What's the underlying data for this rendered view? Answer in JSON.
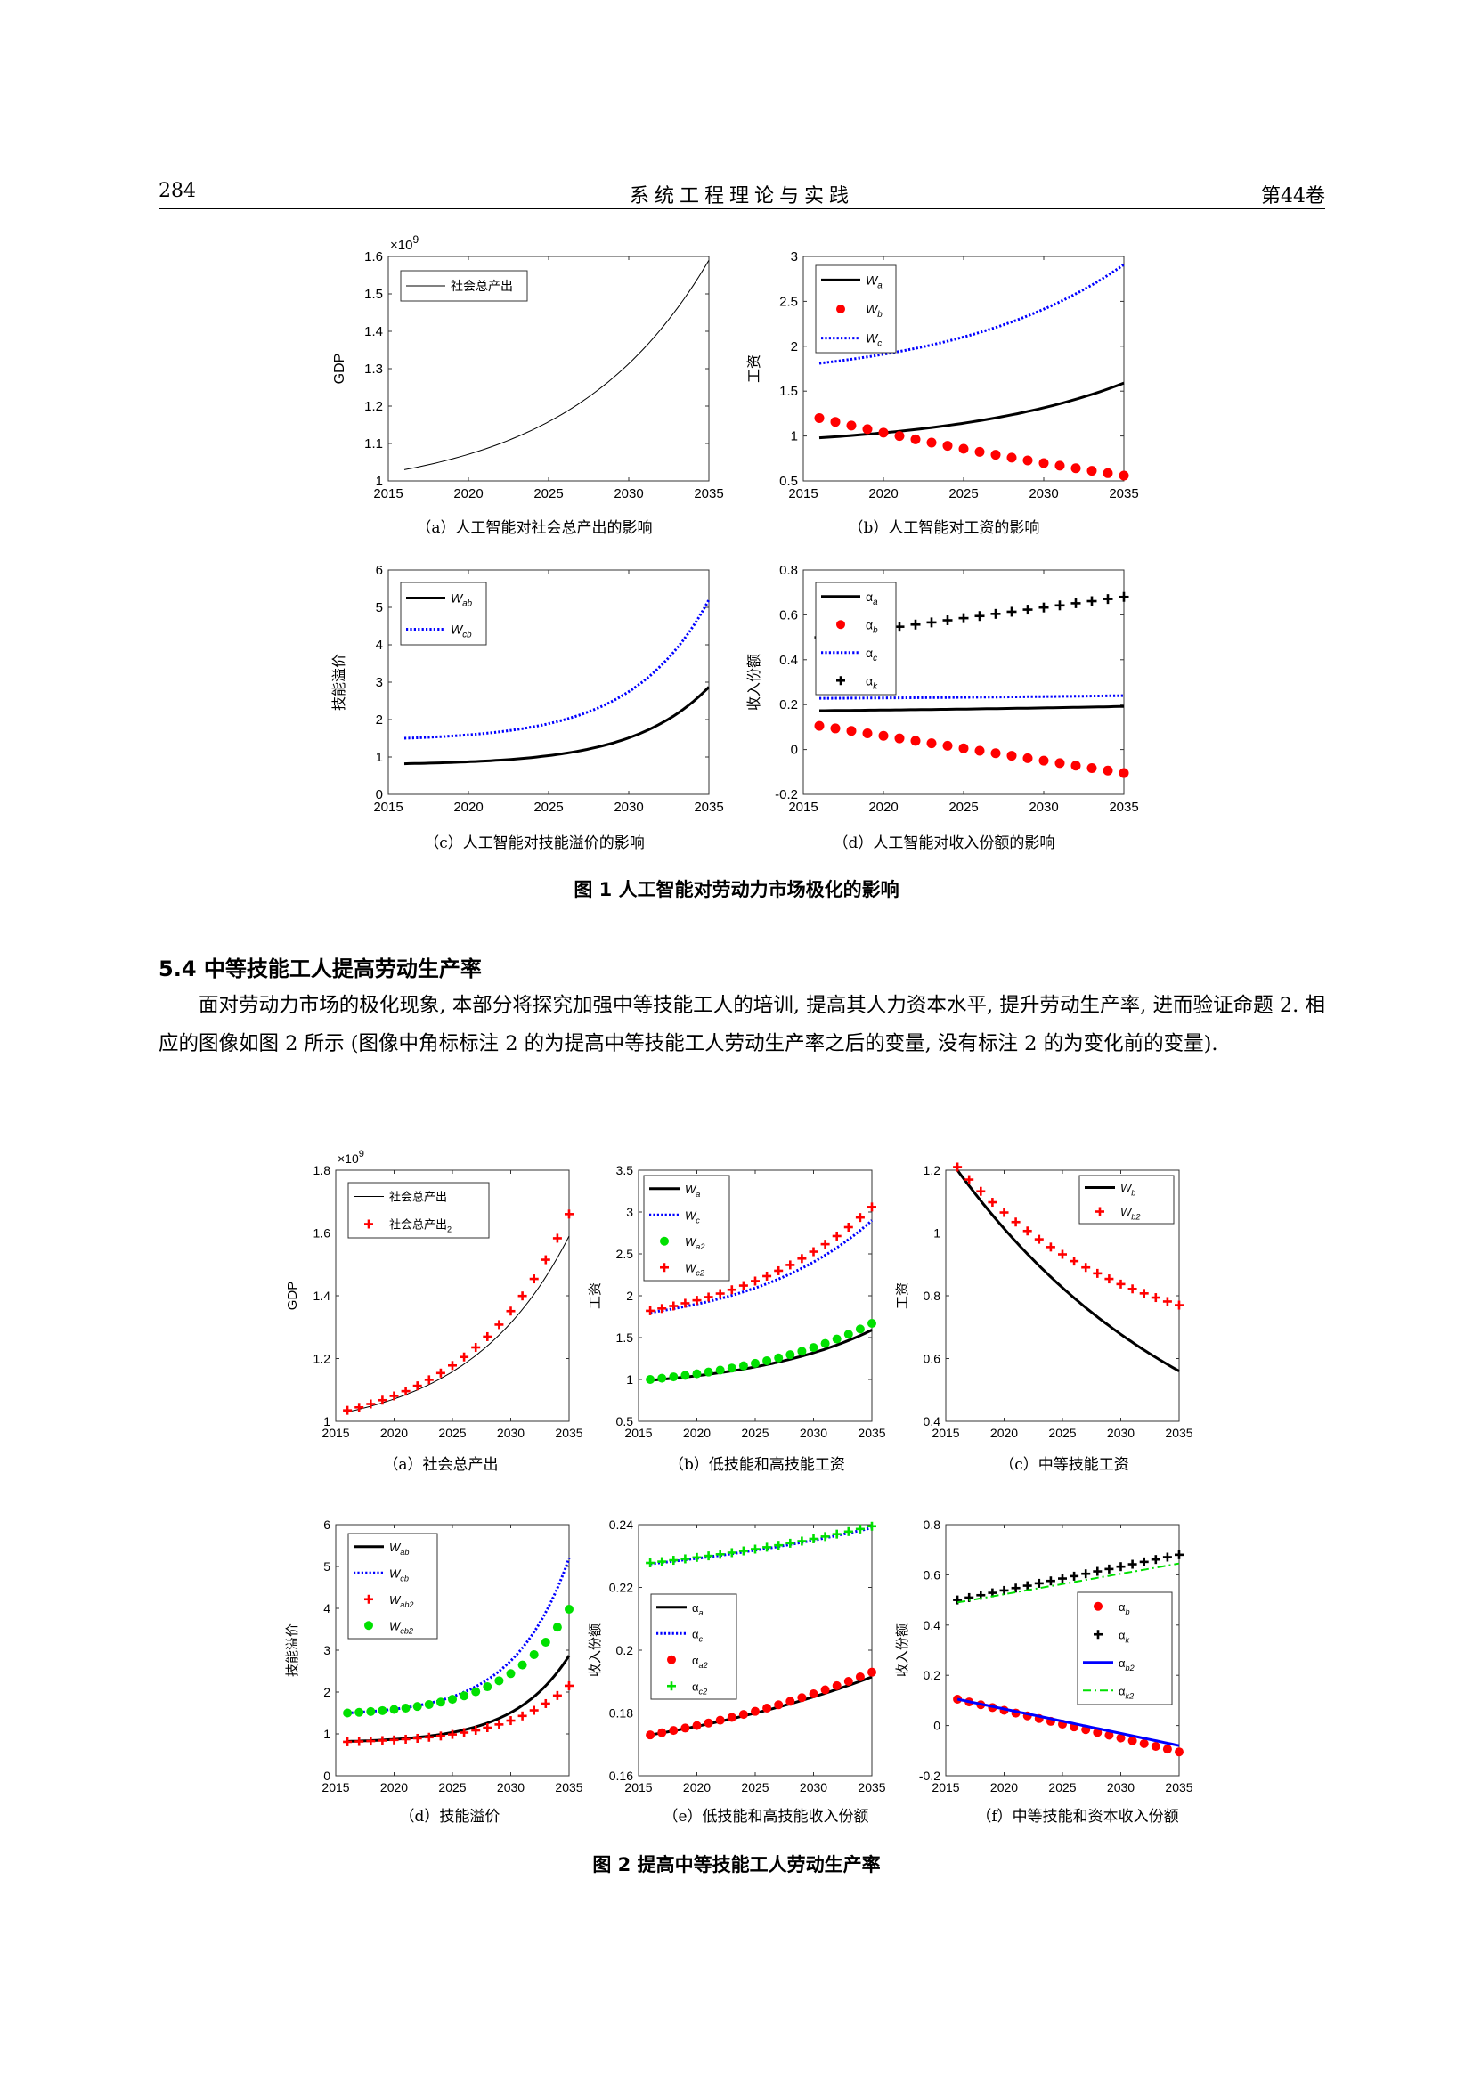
{
  "header": {
    "page_number": "284",
    "journal": "系统工程理论与实践",
    "volume": "第44卷"
  },
  "figure1": {
    "caption": "图 1   人工智能对劳动力市场极化的影响",
    "subcaptions": {
      "a": "（a）人工智能对社会总产出的影响",
      "b": "（b）人工智能对工资的影响",
      "c": "（c）人工智能对技能溢价的影响",
      "d": "（d）人工智能对收入份额的影响"
    }
  },
  "section": {
    "title": "5.4  中等技能工人提高劳动生产率"
  },
  "paragraph": {
    "text": "面对劳动力市场的极化现象, 本部分将探究加强中等技能工人的培训, 提高其人力资本水平, 提升劳动生产率, 进而验证命题 2. 相应的图像如图 2 所示 (图像中角标标注 2 的为提高中等技能工人劳动生产率之后的变量, 没有标注 2 的为变化前的变量)."
  },
  "figure2": {
    "caption": "图 2   提高中等技能工人劳动生产率",
    "subcaptions": {
      "a": "（a）社会总产出",
      "b": "（b）低技能和高技能工资",
      "c": "（c）中等技能工资",
      "d": "（d）技能溢价",
      "e": "（e）低技能和高技能收入份额",
      "f": "（f）中等技能和资本收入份额"
    }
  },
  "chart_data": [
    {
      "id": "1a",
      "type": "line",
      "xlim": [
        2015,
        2035
      ],
      "ylim": [
        1.0,
        1.6
      ],
      "yticks": [
        1,
        1.1,
        1.2,
        1.3,
        1.4,
        1.5,
        1.6
      ],
      "ylabel": "GDP",
      "exponent": "×10^9",
      "legend_position": "top-left",
      "series": [
        {
          "name": "社会总产出",
          "style": "line",
          "color": "#000000",
          "width": 1,
          "x0": 2016,
          "x1": 2035,
          "v0": 1.03,
          "v1": 1.59,
          "growth": 2.2
        }
      ]
    },
    {
      "id": "1b",
      "type": "line",
      "xlim": [
        2015,
        2035
      ],
      "ylim": [
        0.5,
        3
      ],
      "yticks": [
        0.5,
        1,
        1.5,
        2,
        2.5,
        3
      ],
      "ylabel": "工资",
      "legend_position": "top-left",
      "series": [
        {
          "name": "W_a",
          "label": "W",
          "sub": "a",
          "style": "line",
          "color": "#000000",
          "width": 3,
          "x0": 2016,
          "x1": 2035,
          "v0": 0.98,
          "v1": 1.59,
          "growth": 1.8
        },
        {
          "name": "W_b",
          "label": "W",
          "sub": "b",
          "style": "dots",
          "color": "#ff0000",
          "x0": 2016,
          "x1": 2035,
          "v0": 1.2,
          "v1": 0.56,
          "growth": -0.5
        },
        {
          "name": "W_c",
          "label": "W",
          "sub": "c",
          "style": "dotted",
          "color": "#0000ff",
          "width": 3,
          "x0": 2016,
          "x1": 2035,
          "v0": 1.81,
          "v1": 2.91,
          "growth": 1.8
        }
      ]
    },
    {
      "id": "1c",
      "type": "line",
      "xlim": [
        2015,
        2035
      ],
      "ylim": [
        0,
        6
      ],
      "yticks": [
        0,
        1,
        2,
        3,
        4,
        5,
        6
      ],
      "ylabel": "技能溢价",
      "legend_position": "top-left",
      "series": [
        {
          "name": "W_ab",
          "label": "W",
          "sub": "ab",
          "style": "line",
          "color": "#000000",
          "width": 3,
          "x0": 2016,
          "x1": 2035,
          "v0": 0.82,
          "v1": 2.87,
          "growth": 4.0
        },
        {
          "name": "W_cb",
          "label": "W",
          "sub": "cb",
          "style": "dotted",
          "color": "#0000ff",
          "width": 3,
          "x0": 2016,
          "x1": 2035,
          "v0": 1.5,
          "v1": 5.2,
          "growth": 4.0
        }
      ]
    },
    {
      "id": "1d",
      "type": "line",
      "xlim": [
        2015,
        2035
      ],
      "ylim": [
        -0.2,
        0.8
      ],
      "yticks": [
        -0.2,
        0,
        0.2,
        0.4,
        0.6,
        0.8
      ],
      "ylabel": "收入份额",
      "legend_position": "top-left",
      "series": [
        {
          "name": "α_a",
          "label": "α",
          "sub": "a",
          "style": "line",
          "color": "#000000",
          "width": 3,
          "x0": 2016,
          "x1": 2035,
          "v0": 0.173,
          "v1": 0.192,
          "growth": 0.8
        },
        {
          "name": "α_b",
          "label": "α",
          "sub": "b",
          "style": "dots",
          "color": "#ff0000",
          "x0": 2016,
          "x1": 2035,
          "v0": 0.105,
          "v1": -0.105,
          "growth": 0
        },
        {
          "name": "α_c",
          "label": "α",
          "sub": "c",
          "style": "dotted",
          "color": "#0000ff",
          "width": 3,
          "x0": 2016,
          "x1": 2035,
          "v0": 0.228,
          "v1": 0.24,
          "growth": 0.8
        },
        {
          "name": "α_k",
          "label": "α",
          "sub": "k",
          "style": "plus",
          "color": "#000000",
          "x0": 2016,
          "x1": 2035,
          "v0": 0.5,
          "v1": 0.68,
          "growth": 0
        }
      ]
    },
    {
      "id": "2a",
      "type": "line",
      "xlim": [
        2015,
        2035
      ],
      "ylim": [
        1.0,
        1.8
      ],
      "yticks": [
        1,
        1.2,
        1.4,
        1.6,
        1.8
      ],
      "ylabel": "GDP",
      "exponent": "×10^9",
      "legend_position": "top-left",
      "series": [
        {
          "name": "社会总产出",
          "style": "line",
          "color": "#000000",
          "width": 1,
          "x0": 2016,
          "x1": 2035,
          "v0": 1.03,
          "v1": 1.59,
          "growth": 2.2
        },
        {
          "name": "社会总产出2",
          "label": "社会总产出",
          "sub": "2",
          "style": "plus",
          "color": "#ff0000",
          "x0": 2016,
          "x1": 2035,
          "v0": 1.035,
          "v1": 1.66,
          "growth": 2.2
        }
      ]
    },
    {
      "id": "2b",
      "type": "line",
      "xlim": [
        2015,
        2035
      ],
      "ylim": [
        0.5,
        3.5
      ],
      "yticks": [
        0.5,
        1,
        1.5,
        2,
        2.5,
        3,
        3.5
      ],
      "ylabel": "工资",
      "legend_position": "top-left",
      "series": [
        {
          "name": "W_a",
          "label": "W",
          "sub": "a",
          "style": "line",
          "color": "#000000",
          "width": 3,
          "x0": 2016,
          "x1": 2035,
          "v0": 0.99,
          "v1": 1.59,
          "growth": 1.8
        },
        {
          "name": "W_c",
          "label": "W",
          "sub": "c",
          "style": "dotted",
          "color": "#0000ff",
          "width": 3,
          "x0": 2016,
          "x1": 2035,
          "v0": 1.8,
          "v1": 2.9,
          "growth": 1.8
        },
        {
          "name": "W_a2",
          "label": "W",
          "sub": "a2",
          "style": "dots",
          "color": "#00e000",
          "x0": 2016,
          "x1": 2035,
          "v0": 1.0,
          "v1": 1.67,
          "growth": 1.6
        },
        {
          "name": "W_c2",
          "label": "W",
          "sub": "c2",
          "style": "plus",
          "color": "#ff0000",
          "x0": 2016,
          "x1": 2035,
          "v0": 1.82,
          "v1": 3.06,
          "growth": 1.6
        }
      ]
    },
    {
      "id": "2c",
      "type": "line",
      "xlim": [
        2015,
        2035
      ],
      "ylim": [
        0.4,
        1.2
      ],
      "yticks": [
        0.4,
        0.6,
        0.8,
        1,
        1.2
      ],
      "ylabel": "工资",
      "legend_position": "top-right",
      "series": [
        {
          "name": "W_b",
          "label": "W",
          "sub": "b",
          "style": "line",
          "color": "#000000",
          "width": 3,
          "x0": 2016,
          "x1": 2035,
          "v0": 1.2,
          "v1": 0.56,
          "growth": -0.9
        },
        {
          "name": "W_b2",
          "label": "W",
          "sub": "b2",
          "style": "plus",
          "color": "#ff0000",
          "x0": 2016,
          "x1": 2035,
          "v0": 1.21,
          "v1": 0.77,
          "growth": -1.3
        }
      ]
    },
    {
      "id": "2d",
      "type": "line",
      "xlim": [
        2015,
        2035
      ],
      "ylim": [
        0,
        6
      ],
      "yticks": [
        0,
        1,
        2,
        3,
        4,
        5,
        6
      ],
      "ylabel": "技能溢价",
      "legend_position": "top-left",
      "series": [
        {
          "name": "W_ab",
          "label": "W",
          "sub": "ab",
          "style": "line",
          "color": "#000000",
          "width": 3,
          "x0": 2016,
          "x1": 2035,
          "v0": 0.82,
          "v1": 2.87,
          "growth": 4.0
        },
        {
          "name": "W_cb",
          "label": "W",
          "sub": "cb",
          "style": "dotted",
          "color": "#0000ff",
          "width": 3,
          "x0": 2016,
          "x1": 2035,
          "v0": 1.5,
          "v1": 5.2,
          "growth": 4.0
        },
        {
          "name": "W_ab2",
          "label": "W",
          "sub": "ab2",
          "style": "plus",
          "color": "#ff0000",
          "x0": 2016,
          "x1": 2035,
          "v0": 0.81,
          "v1": 2.15,
          "growth": 3.5
        },
        {
          "name": "W_cb2",
          "label": "W",
          "sub": "cb2",
          "style": "dots",
          "color": "#00e000",
          "x0": 2016,
          "x1": 2035,
          "v0": 1.5,
          "v1": 3.98,
          "growth": 3.5
        }
      ]
    },
    {
      "id": "2e",
      "type": "line",
      "xlim": [
        2015,
        2035
      ],
      "ylim": [
        0.16,
        0.24
      ],
      "yticks": [
        0.16,
        0.18,
        0.2,
        0.22,
        0.24
      ],
      "ylabel": "收入份额",
      "legend_position": "middle-left",
      "series": [
        {
          "name": "α_a",
          "label": "α",
          "sub": "a",
          "style": "line",
          "color": "#000000",
          "width": 3,
          "x0": 2016,
          "x1": 2035,
          "v0": 0.173,
          "v1": 0.1915,
          "growth": 0.8
        },
        {
          "name": "α_c",
          "label": "α",
          "sub": "c",
          "style": "dotted",
          "color": "#0000ff",
          "width": 3,
          "x0": 2016,
          "x1": 2035,
          "v0": 0.2275,
          "v1": 0.239,
          "growth": 0.8
        },
        {
          "name": "α_a2",
          "label": "α",
          "sub": "a2",
          "style": "dots",
          "color": "#ff0000",
          "x0": 2016,
          "x1": 2035,
          "v0": 0.173,
          "v1": 0.193,
          "growth": 0.8
        },
        {
          "name": "α_c2",
          "label": "α",
          "sub": "c2",
          "style": "plus",
          "color": "#00e000",
          "x0": 2016,
          "x1": 2035,
          "v0": 0.2278,
          "v1": 0.2395,
          "growth": 0.8
        }
      ]
    },
    {
      "id": "2f",
      "type": "line",
      "xlim": [
        2015,
        2035
      ],
      "ylim": [
        -0.2,
        0.8
      ],
      "yticks": [
        -0.2,
        0,
        0.2,
        0.4,
        0.6,
        0.8
      ],
      "ylabel": "收入份额",
      "legend_position": "middle-right",
      "series": [
        {
          "name": "α_b",
          "label": "α",
          "sub": "b",
          "style": "dots",
          "color": "#ff0000",
          "x0": 2016,
          "x1": 2035,
          "v0": 0.105,
          "v1": -0.105,
          "growth": 0
        },
        {
          "name": "α_k",
          "label": "α",
          "sub": "k",
          "style": "plus",
          "color": "#000000",
          "x0": 2016,
          "x1": 2035,
          "v0": 0.5,
          "v1": 0.68,
          "growth": 0
        },
        {
          "name": "α_b2",
          "label": "α",
          "sub": "b2",
          "style": "line",
          "color": "#0000ff",
          "width": 3,
          "x0": 2016,
          "x1": 2035,
          "v0": 0.105,
          "v1": -0.08,
          "growth": 0
        },
        {
          "name": "α_k2",
          "label": "α",
          "sub": "k2",
          "style": "dashdot",
          "color": "#00e000",
          "width": 2,
          "x0": 2016,
          "x1": 2035,
          "v0": 0.49,
          "v1": 0.645,
          "growth": 0
        }
      ]
    }
  ]
}
